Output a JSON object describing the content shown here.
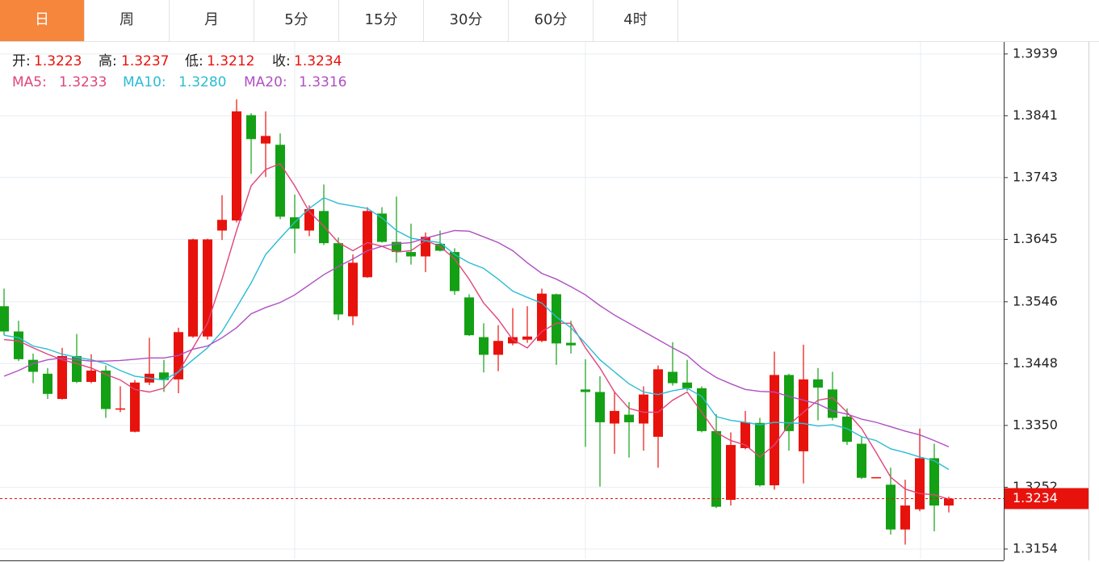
{
  "tabs": [
    "日",
    "周",
    "月",
    "5分",
    "15分",
    "30分",
    "60分",
    "4时"
  ],
  "active_tab": 0,
  "info": {
    "open_label": "开:",
    "open": "1.3223",
    "high_label": "高:",
    "high": "1.3237",
    "low_label": "低:",
    "low": "1.3212",
    "close_label": "收:",
    "close": "1.3234"
  },
  "chart_data": {
    "type": "candlestick",
    "up_color": "#e8120c",
    "down_color": "#14a014",
    "categories": [
      null,
      null,
      null,
      null,
      null,
      null,
      null,
      null,
      null,
      null,
      null,
      null,
      null,
      null,
      null,
      null,
      null,
      null,
      null,
      null,
      null,
      null,
      null,
      null,
      null,
      null,
      null,
      null,
      null,
      null,
      null,
      null,
      null,
      null,
      null,
      null,
      null,
      null,
      null,
      null,
      null,
      null,
      null,
      null,
      null,
      null,
      null,
      null,
      null,
      null,
      null,
      null,
      null,
      null,
      null,
      null,
      null,
      null,
      null,
      null,
      null,
      null,
      null,
      null,
      null,
      null
    ],
    "open": [
      1.3539,
      1.3499,
      1.3454,
      1.3432,
      1.3392,
      1.346,
      1.3419,
      1.3437,
      1.3375,
      1.334,
      1.3418,
      1.3434,
      1.3423,
      1.3491,
      1.3491,
      1.3659,
      1.3675,
      1.3842,
      1.3797,
      1.3795,
      1.368,
      1.3659,
      1.369,
      1.3639,
      1.3523,
      1.3585,
      1.3686,
      1.3641,
      1.3625,
      1.3618,
      1.3638,
      1.3625,
      1.3553,
      1.349,
      1.3462,
      1.348,
      1.3486,
      1.3484,
      1.3558,
      1.3481,
      1.3407,
      1.3403,
      1.3353,
      1.3367,
      1.3353,
      1.3332,
      1.3435,
      1.3418,
      1.3409,
      1.3341,
      1.3232,
      1.3314,
      1.3354,
      1.3255,
      1.343,
      1.3309,
      1.3423,
      1.3407,
      1.3364,
      1.3321,
      1.3267,
      1.3256,
      1.3185,
      1.3217,
      1.3298,
      1.3223
    ],
    "high": [
      1.3567,
      1.3516,
      1.3464,
      1.3441,
      1.3473,
      1.3495,
      1.3463,
      1.3445,
      1.3412,
      1.3422,
      1.3489,
      1.3454,
      1.3505,
      1.3646,
      1.3646,
      1.3715,
      1.3867,
      1.3845,
      1.3848,
      1.3813,
      1.3716,
      1.3699,
      1.3732,
      1.3648,
      1.3621,
      1.3696,
      1.3696,
      1.3713,
      1.367,
      1.3656,
      1.3659,
      1.3631,
      1.3558,
      1.3512,
      1.3509,
      1.3536,
      1.3539,
      1.3567,
      1.3559,
      1.3516,
      1.3455,
      1.3428,
      1.3404,
      1.3387,
      1.3412,
      1.3445,
      1.3482,
      1.3454,
      1.3412,
      1.3368,
      1.3339,
      1.3373,
      1.3362,
      1.3467,
      1.3432,
      1.3478,
      1.3441,
      1.3435,
      1.3377,
      1.3332,
      1.3268,
      1.3283,
      1.3264,
      1.3345,
      1.3321,
      1.3237
    ],
    "low": [
      1.3493,
      1.3452,
      1.3417,
      1.3392,
      1.3391,
      1.3417,
      1.3417,
      1.3362,
      1.3371,
      1.3339,
      1.3414,
      1.3403,
      1.3401,
      1.3489,
      1.3486,
      1.3644,
      1.3672,
      1.3749,
      1.3744,
      1.3677,
      1.3623,
      1.365,
      1.3636,
      1.3517,
      1.3509,
      1.3584,
      1.364,
      1.3608,
      1.3605,
      1.3593,
      1.3626,
      1.3557,
      1.3492,
      1.3434,
      1.3436,
      1.3477,
      1.3481,
      1.3482,
      1.3446,
      1.3464,
      1.3316,
      1.3253,
      1.3305,
      1.3299,
      1.331,
      1.3283,
      1.3413,
      1.3405,
      1.3339,
      1.3219,
      1.3223,
      1.3312,
      1.3253,
      1.3248,
      1.331,
      1.3258,
      1.3358,
      1.3358,
      1.3319,
      1.3265,
      1.3267,
      1.3177,
      1.3161,
      1.3214,
      1.3182,
      1.3212
    ],
    "close": [
      1.3499,
      1.3455,
      1.3435,
      1.34,
      1.346,
      1.3419,
      1.3437,
      1.3376,
      1.3377,
      1.3418,
      1.3432,
      1.3422,
      1.3498,
      1.3645,
      1.3645,
      1.3676,
      1.3848,
      1.3804,
      1.3809,
      1.3681,
      1.3662,
      1.3693,
      1.3639,
      1.3526,
      1.3608,
      1.369,
      1.3641,
      1.3625,
      1.3618,
      1.3649,
      1.3627,
      1.3563,
      1.3493,
      1.3462,
      1.3484,
      1.349,
      1.3491,
      1.3559,
      1.348,
      1.3477,
      1.3403,
      1.3355,
      1.3373,
      1.3355,
      1.3399,
      1.3439,
      1.3417,
      1.3409,
      1.3341,
      1.3221,
      1.3319,
      1.3355,
      1.3255,
      1.343,
      1.3341,
      1.3423,
      1.341,
      1.3362,
      1.3324,
      1.3267,
      1.3268,
      1.3185,
      1.3223,
      1.3298,
      1.3223,
      1.3234
    ],
    "series": [
      {
        "name": "MA5:",
        "color": "#e0457b",
        "last_label": "1.3233",
        "values": [
          1.3486,
          1.3484,
          1.3473,
          1.3463,
          1.3454,
          1.3448,
          1.3441,
          1.3431,
          1.3422,
          1.3407,
          1.3403,
          1.3409,
          1.3435,
          1.3473,
          1.3512,
          1.3582,
          1.3659,
          1.373,
          1.3756,
          1.3765,
          1.373,
          1.3689,
          1.3666,
          1.364,
          1.3627,
          1.364,
          1.3634,
          1.3625,
          1.3627,
          1.3643,
          1.3634,
          1.3614,
          1.3582,
          1.3544,
          1.3518,
          1.3486,
          1.3473,
          1.3499,
          1.3512,
          1.3512,
          1.3473,
          1.3441,
          1.3403,
          1.3377,
          1.3371,
          1.3371,
          1.339,
          1.3403,
          1.3371,
          1.3339,
          1.3326,
          1.3319,
          1.33,
          1.3319,
          1.3351,
          1.3371,
          1.339,
          1.3394,
          1.3371,
          1.3345,
          1.3307,
          1.3268,
          1.3249,
          1.3242,
          1.324,
          1.3233
        ]
      },
      {
        "name": "MA10:",
        "color": "#2bbcd4",
        "last_label": "1.3280",
        "values": [
          1.3493,
          1.3489,
          1.3476,
          1.3471,
          1.3463,
          1.3458,
          1.3454,
          1.3448,
          1.3437,
          1.3428,
          1.3425,
          1.3422,
          1.3435,
          1.3454,
          1.3473,
          1.3499,
          1.3537,
          1.3576,
          1.3621,
          1.3647,
          1.3672,
          1.3694,
          1.3711,
          1.3702,
          1.3698,
          1.3694,
          1.3679,
          1.3659,
          1.3647,
          1.3643,
          1.364,
          1.3621,
          1.3608,
          1.3599,
          1.3582,
          1.3563,
          1.3553,
          1.3544,
          1.3522,
          1.3505,
          1.348,
          1.3454,
          1.3435,
          1.3416,
          1.3403,
          1.3399,
          1.3405,
          1.3409,
          1.3396,
          1.3364,
          1.3358,
          1.3355,
          1.3351,
          1.3355,
          1.3354,
          1.3353,
          1.3349,
          1.3351,
          1.3345,
          1.3332,
          1.3326,
          1.3313,
          1.3307,
          1.33,
          1.3294,
          1.328
        ]
      },
      {
        "name": "MA20:",
        "color": "#b04fc3",
        "last_label": "1.3316",
        "values": [
          1.3428,
          1.3437,
          1.3448,
          1.3454,
          1.3457,
          1.3454,
          1.3452,
          1.3452,
          1.3453,
          1.3455,
          1.3457,
          1.3457,
          1.3461,
          1.3471,
          1.3476,
          1.3489,
          1.3505,
          1.3527,
          1.3537,
          1.3545,
          1.3557,
          1.3573,
          1.3589,
          1.3602,
          1.3614,
          1.3627,
          1.3634,
          1.3638,
          1.364,
          1.3647,
          1.3653,
          1.3659,
          1.3658,
          1.3649,
          1.364,
          1.3627,
          1.3608,
          1.3591,
          1.3582,
          1.357,
          1.3557,
          1.354,
          1.3525,
          1.3512,
          1.3499,
          1.3486,
          1.3473,
          1.3461,
          1.3441,
          1.3426,
          1.3416,
          1.3407,
          1.3404,
          1.3403,
          1.3396,
          1.339,
          1.3384,
          1.3373,
          1.3368,
          1.336,
          1.3355,
          1.3348,
          1.3341,
          1.3335,
          1.3326,
          1.3316
        ]
      }
    ],
    "current_price": 1.3234,
    "current_color": "#e8120c",
    "ylim": [
      1.3136,
      1.3958
    ],
    "yticks": [
      1.3154,
      1.3252,
      {
        "value": 1.335,
        "label": "1.3350"
      },
      1.3448,
      1.3546,
      1.3645,
      1.3743,
      1.3841,
      1.3939
    ],
    "grid": true
  }
}
